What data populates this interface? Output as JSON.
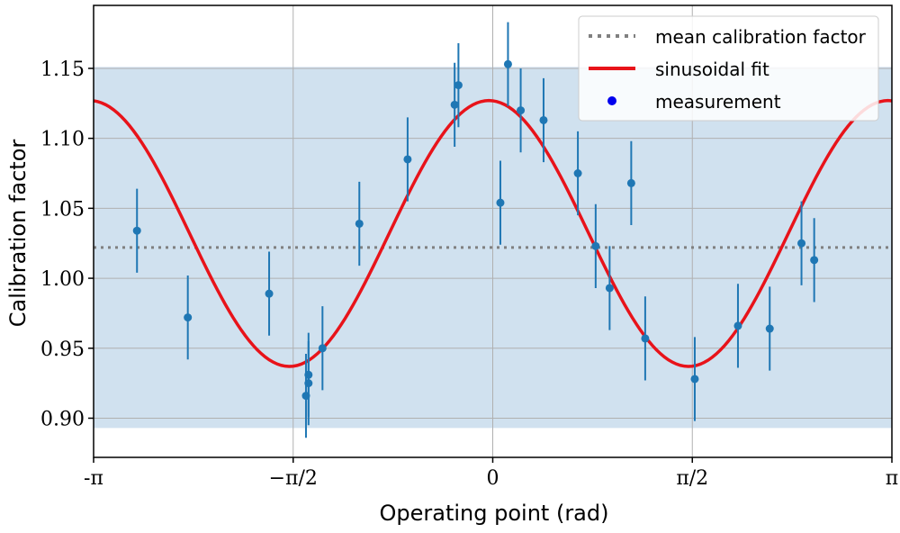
{
  "chart_data": {
    "type": "scatter",
    "xlabel": "Operating point (rad)",
    "ylabel": "Calibration factor",
    "xlim": [
      -3.14159,
      3.14159
    ],
    "ylim": [
      0.872,
      1.195
    ],
    "x_ticks": [
      {
        "value": -3.14159,
        "label": "-π"
      },
      {
        "value": -1.5708,
        "label": "−π/2"
      },
      {
        "value": 0,
        "label": "0"
      },
      {
        "value": 1.5708,
        "label": "π/2"
      },
      {
        "value": 3.14159,
        "label": "π"
      }
    ],
    "y_ticks": [
      {
        "value": 0.9,
        "label": "0.90"
      },
      {
        "value": 0.95,
        "label": "0.95"
      },
      {
        "value": 1.0,
        "label": "1.00"
      },
      {
        "value": 1.05,
        "label": "1.05"
      },
      {
        "value": 1.1,
        "label": "1.10"
      },
      {
        "value": 1.15,
        "label": "1.15"
      }
    ],
    "grid": true,
    "band": {
      "y_min": 0.893,
      "y_max": 1.151,
      "color": "#d0e1ef"
    },
    "mean_line": {
      "name": "mean calibration factor",
      "value": 1.022,
      "color": "#808080",
      "style": "dotted"
    },
    "fit": {
      "name": "sinusoidal fit",
      "offset": 1.032,
      "amplitude": 0.095,
      "phase": -0.03,
      "color": "#e8131a"
    },
    "measurements": {
      "name": "measurement",
      "color": "#1f77b4",
      "legend_marker_color": "#0000ee",
      "points": [
        {
          "x": -2.8,
          "y": 1.034,
          "err": 0.03
        },
        {
          "x": -2.4,
          "y": 0.972,
          "err": 0.03
        },
        {
          "x": -1.76,
          "y": 0.989,
          "err": 0.03
        },
        {
          "x": -1.47,
          "y": 0.916,
          "err": 0.03
        },
        {
          "x": -1.45,
          "y": 0.925,
          "err": 0.03
        },
        {
          "x": -1.45,
          "y": 0.931,
          "err": 0.03
        },
        {
          "x": -1.34,
          "y": 0.95,
          "err": 0.03
        },
        {
          "x": -1.05,
          "y": 1.039,
          "err": 0.03
        },
        {
          "x": -0.67,
          "y": 1.085,
          "err": 0.03
        },
        {
          "x": -0.3,
          "y": 1.124,
          "err": 0.03
        },
        {
          "x": -0.27,
          "y": 1.138,
          "err": 0.03
        },
        {
          "x": 0.06,
          "y": 1.054,
          "err": 0.03
        },
        {
          "x": 0.12,
          "y": 1.153,
          "err": 0.03
        },
        {
          "x": 0.22,
          "y": 1.12,
          "err": 0.03
        },
        {
          "x": 0.4,
          "y": 1.113,
          "err": 0.03
        },
        {
          "x": 0.67,
          "y": 1.075,
          "err": 0.03
        },
        {
          "x": 0.81,
          "y": 1.023,
          "err": 0.03
        },
        {
          "x": 0.92,
          "y": 0.993,
          "err": 0.03
        },
        {
          "x": 1.09,
          "y": 1.068,
          "err": 0.03
        },
        {
          "x": 1.2,
          "y": 0.957,
          "err": 0.03
        },
        {
          "x": 1.59,
          "y": 0.928,
          "err": 0.03
        },
        {
          "x": 1.93,
          "y": 0.966,
          "err": 0.03
        },
        {
          "x": 2.18,
          "y": 0.964,
          "err": 0.03
        },
        {
          "x": 2.43,
          "y": 1.025,
          "err": 0.03
        },
        {
          "x": 2.53,
          "y": 1.013,
          "err": 0.03
        }
      ]
    },
    "legend": {
      "position": "top-right"
    }
  }
}
